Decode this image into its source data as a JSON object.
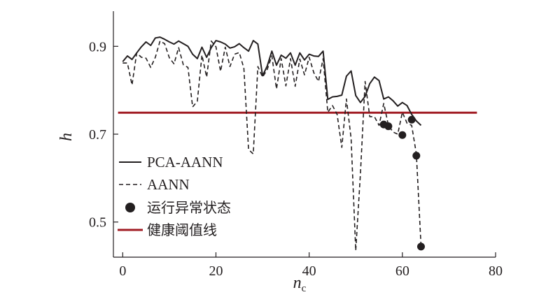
{
  "chart_data": {
    "type": "line",
    "xlabel": "n",
    "xlabel_subscript": "c",
    "ylabel": "h",
    "xlim": [
      -2,
      80
    ],
    "ylim": [
      0.42,
      0.98
    ],
    "xticks": [
      0,
      20,
      40,
      60,
      80
    ],
    "xtick_labels": [
      "0",
      "20",
      "40",
      "60",
      "80"
    ],
    "yticks": [
      0.5,
      0.7,
      0.9
    ],
    "ytick_labels": [
      "0.5",
      "0.7",
      "0.9"
    ],
    "grid": false,
    "legend_position": "bottom-left",
    "series": [
      {
        "name": "PCA-AANN",
        "style": "solid",
        "color": "#231f20",
        "x": [
          0,
          1,
          2,
          3,
          4,
          5,
          6,
          7,
          8,
          9,
          10,
          11,
          12,
          13,
          14,
          15,
          16,
          17,
          18,
          19,
          20,
          21,
          22,
          23,
          24,
          25,
          26,
          27,
          28,
          29,
          30,
          31,
          32,
          33,
          34,
          35,
          36,
          37,
          38,
          39,
          40,
          41,
          42,
          43,
          44,
          45,
          46,
          47,
          48,
          49,
          50,
          51,
          52,
          53,
          54,
          55,
          56,
          57,
          58,
          59,
          60,
          61,
          62,
          63,
          64
        ],
        "y": [
          0.865,
          0.878,
          0.87,
          0.885,
          0.899,
          0.91,
          0.902,
          0.919,
          0.921,
          0.916,
          0.91,
          0.905,
          0.912,
          0.906,
          0.9,
          0.882,
          0.872,
          0.898,
          0.875,
          0.897,
          0.913,
          0.91,
          0.905,
          0.896,
          0.899,
          0.906,
          0.897,
          0.889,
          0.913,
          0.905,
          0.833,
          0.855,
          0.889,
          0.857,
          0.88,
          0.873,
          0.885,
          0.857,
          0.885,
          0.869,
          0.882,
          0.878,
          0.877,
          0.889,
          0.779,
          0.785,
          0.786,
          0.789,
          0.832,
          0.844,
          0.788,
          0.772,
          0.786,
          0.815,
          0.83,
          0.822,
          0.78,
          0.785,
          0.776,
          0.764,
          0.772,
          0.765,
          0.745,
          0.73,
          0.72
        ]
      },
      {
        "name": "AANN",
        "style": "dashed",
        "color": "#231f20",
        "x": [
          0,
          1,
          2,
          3,
          4,
          5,
          6,
          7,
          8,
          9,
          10,
          11,
          12,
          13,
          14,
          15,
          16,
          17,
          18,
          19,
          20,
          21,
          22,
          23,
          24,
          25,
          26,
          27,
          28,
          29,
          30,
          31,
          32,
          33,
          34,
          35,
          36,
          37,
          38,
          39,
          40,
          41,
          42,
          43,
          44,
          45,
          46,
          47,
          48,
          49,
          50,
          51,
          52,
          53,
          54,
          55,
          56,
          57,
          58,
          59,
          60,
          61,
          62,
          63,
          64
        ],
        "y": [
          0.862,
          0.862,
          0.812,
          0.885,
          0.875,
          0.873,
          0.852,
          0.875,
          0.912,
          0.906,
          0.874,
          0.86,
          0.897,
          0.858,
          0.852,
          0.762,
          0.775,
          0.88,
          0.83,
          0.912,
          0.899,
          0.843,
          0.898,
          0.854,
          0.882,
          0.886,
          0.85,
          0.665,
          0.655,
          0.854,
          0.83,
          0.847,
          0.878,
          0.803,
          0.872,
          0.81,
          0.872,
          0.809,
          0.871,
          0.835,
          0.875,
          0.84,
          0.82,
          0.872,
          0.75,
          0.765,
          0.745,
          0.67,
          0.78,
          0.69,
          0.435,
          0.61,
          0.82,
          0.74,
          0.74,
          0.72,
          0.77,
          0.72,
          0.705,
          0.7,
          0.75,
          0.725,
          0.72,
          0.655,
          0.445
        ]
      }
    ],
    "abnormal_points": {
      "name": "运行异常状态",
      "color": "#231f20",
      "x": [
        56,
        57,
        60,
        62,
        63,
        64
      ],
      "y": [
        0.722,
        0.718,
        0.698,
        0.733,
        0.651,
        0.444
      ]
    },
    "threshold": {
      "name": "健康阈值线",
      "color": "#a11c24",
      "y": 0.749,
      "x_range": [
        -1,
        76
      ]
    },
    "legend": [
      "PCA-AANN",
      "AANN",
      "运行异常状态",
      "健康阈值线"
    ]
  }
}
